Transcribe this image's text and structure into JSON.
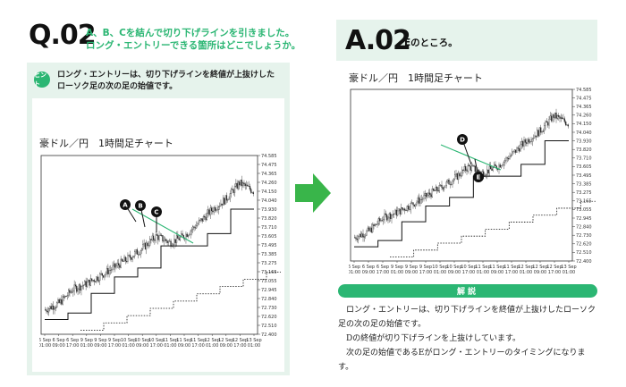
{
  "question": {
    "number": "Q.02",
    "text_line1": "A、B、Cを結んで切り下げラインを引きました。",
    "text_line2": "ロング・エントリーできる箇所はどこでしょうか。"
  },
  "hint": {
    "badge": "ヒント",
    "line1": "ロング・エントリーは、切り下げラインを終値が上抜けした",
    "line2": "ローソク足の次の足の始値です。"
  },
  "answer": {
    "number": "A.02",
    "text": "Eのところ。"
  },
  "chart_left": {
    "title": "豪ドル／円　1時間足チャート",
    "markers": [
      "A",
      "B",
      "C"
    ]
  },
  "chart_right": {
    "title": "豪ドル／円　1時間足チャート",
    "markers": [
      "D",
      "E"
    ]
  },
  "explanation": {
    "header": "解説",
    "p1": "ロング・エントリーは、切り下げラインを終値が上抜けしたローソク足の次の足の始値です。",
    "p2": "Dの終値が切り下げラインを上抜けしています。",
    "p3": "次の足の始値であるEがロング・エントリーのタイミングになります。"
  },
  "colors": {
    "accent": "#2bb673",
    "panel": "#e6f3ec",
    "trendline": "#2bb673",
    "arrow": "#39b54a"
  },
  "chart_data": [
    {
      "type": "line",
      "title": "豪ドル／円　1時間足チャート",
      "x": [
        "6 Sep 01:00",
        "6 Sep 09:00",
        "6 Sep 17:00",
        "9 Sep 01:00",
        "9 Sep 09:00",
        "9 Sep 17:00",
        "10 Sep 01:00",
        "10 Sep 09:00",
        "10 Sep 17:00",
        "11 Sep 01:00",
        "11 Sep 09:00",
        "11 Sep 17:00",
        "12 Sep 01:00",
        "12 Sep 09:00",
        "12 Sep 17:00",
        "13 Sep 01:00"
      ],
      "x_ticks": [
        [
          "6 Sep",
          "01:00"
        ],
        [
          "6 Sep",
          "09:00"
        ],
        [
          "6 Sep",
          "17:00"
        ],
        [
          "9 Sep",
          "01:00"
        ],
        [
          "9 Sep",
          "09:00"
        ],
        [
          "9 Sep",
          "17:00"
        ],
        [
          "10 Sep",
          "01:00"
        ],
        [
          "10 Sep",
          "09:00"
        ],
        [
          "10 Sep",
          "17:00"
        ],
        [
          "11 Sep",
          "01:00"
        ],
        [
          "11 Sep",
          "09:00"
        ],
        [
          "11 Sep",
          "17:00"
        ],
        [
          "12 Sep",
          "01:00"
        ],
        [
          "12 Sep",
          "09:00"
        ],
        [
          "12 Sep",
          "17:00"
        ],
        [
          "13 Sep",
          "01:00"
        ]
      ],
      "y_ticks": [
        "74.585",
        "74.475",
        "74.365",
        "74.260",
        "74.150",
        "74.040",
        "73.930",
        "73.820",
        "73.710",
        "73.605",
        "73.495",
        "73.385",
        "73.275",
        "73.165",
        "73.055",
        "72.945",
        "72.840",
        "72.730",
        "72.620",
        "72.510",
        "72.400"
      ],
      "ylim": [
        72.4,
        74.585
      ],
      "series": [
        {
          "values": [
            72.7,
            72.78,
            72.95,
            73.02,
            73.12,
            73.22,
            73.33,
            73.45,
            73.6,
            73.52,
            73.6,
            73.75,
            73.92,
            74.05,
            74.25,
            74.15
          ]
        }
      ],
      "markers": [
        "A",
        "B",
        "C"
      ]
    },
    {
      "type": "line",
      "title": "豪ドル／円　1時間足チャート",
      "x": [
        "6 Sep 01:00",
        "6 Sep 09:00",
        "6 Sep 17:00",
        "9 Sep 01:00",
        "9 Sep 09:00",
        "9 Sep 17:00",
        "10 Sep 01:00",
        "10 Sep 09:00",
        "10 Sep 17:00",
        "11 Sep 01:00",
        "11 Sep 09:00",
        "11 Sep 17:00",
        "12 Sep 01:00",
        "12 Sep 09:00",
        "12 Sep 17:00",
        "13 Sep 01:00"
      ],
      "x_ticks": [
        [
          "6 Sep",
          "01:00"
        ],
        [
          "6 Sep",
          "09:00"
        ],
        [
          "6 Sep",
          "17:00"
        ],
        [
          "9 Sep",
          "01:00"
        ],
        [
          "9 Sep",
          "09:00"
        ],
        [
          "9 Sep",
          "17:00"
        ],
        [
          "10 Sep",
          "01:00"
        ],
        [
          "10 Sep",
          "09:00"
        ],
        [
          "10 Sep",
          "17:00"
        ],
        [
          "11 Sep",
          "01:00"
        ],
        [
          "11 Sep",
          "09:00"
        ],
        [
          "11 Sep",
          "17:00"
        ],
        [
          "12 Sep",
          "01:00"
        ],
        [
          "12 Sep",
          "09:00"
        ],
        [
          "12 Sep",
          "17:00"
        ],
        [
          "13 Sep",
          "01:00"
        ]
      ],
      "y_ticks": [
        "74.585",
        "74.475",
        "74.365",
        "74.260",
        "74.150",
        "74.040",
        "73.930",
        "73.820",
        "73.710",
        "73.605",
        "73.495",
        "73.385",
        "73.275",
        "73.165",
        "73.055",
        "72.945",
        "72.840",
        "72.730",
        "72.620",
        "72.510",
        "72.400"
      ],
      "ylim": [
        72.4,
        74.585
      ],
      "series": [
        {
          "values": [
            72.7,
            72.78,
            72.95,
            73.02,
            73.12,
            73.22,
            73.33,
            73.45,
            73.6,
            73.52,
            73.6,
            73.75,
            73.92,
            74.05,
            74.25,
            74.15
          ]
        }
      ],
      "markers": [
        "D",
        "E"
      ]
    }
  ]
}
